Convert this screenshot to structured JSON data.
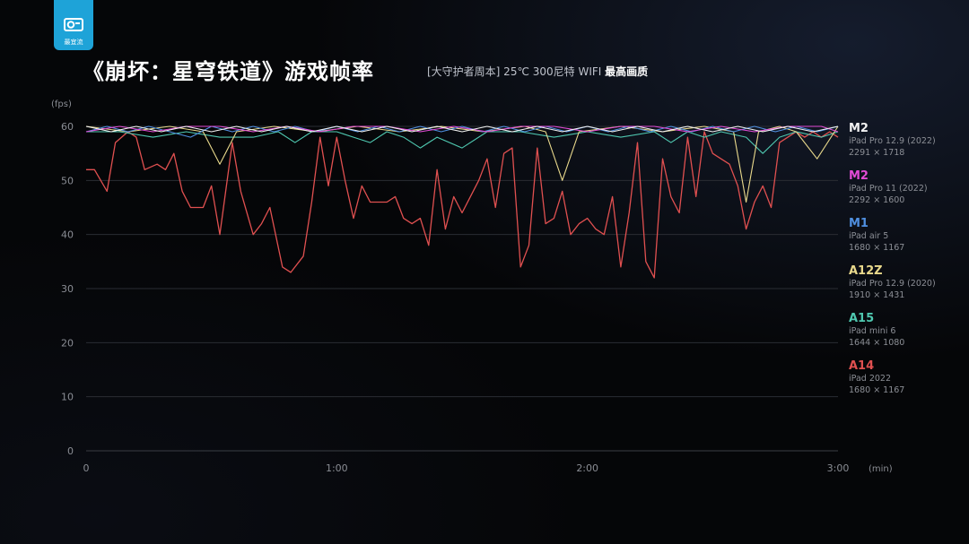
{
  "header": {
    "title": "《崩坏：星穹铁道》游戏帧率",
    "subtitle_conditions": "[大守护者周本] 25℃ 300尼特 WIFI",
    "subtitle_quality": "最高画质",
    "logo_text": "最宜流"
  },
  "colors": {
    "M2_129": "#f2f2f2",
    "M2_11": "#e24bd6",
    "M1": "#4f8fe0",
    "A12Z": "#e9d98c",
    "A15": "#4fc8b0",
    "A14": "#e05050",
    "grid": "#2a2d33",
    "axis_text": "#8a8d94"
  },
  "legend": [
    {
      "chip": "M2",
      "device": "iPad Pro 12.9 (2022)",
      "resolution": "2291 × 1718",
      "color": "#f2f2f2"
    },
    {
      "chip": "M2",
      "device": "iPad Pro 11 (2022)",
      "resolution": "2292 × 1600",
      "color": "#e24bd6"
    },
    {
      "chip": "M1",
      "device": "iPad air 5",
      "resolution": "1680 × 1167",
      "color": "#4f8fe0"
    },
    {
      "chip": "A12Z",
      "device": "iPad Pro 12.9 (2020)",
      "resolution": "1910 × 1431",
      "color": "#e9d98c"
    },
    {
      "chip": "A15",
      "device": "iPad mini 6",
      "resolution": "1644 × 1080",
      "color": "#4fc8b0"
    },
    {
      "chip": "A14",
      "device": "iPad 2022",
      "resolution": "1680 × 1167",
      "color": "#e05050"
    }
  ],
  "chart_data": {
    "type": "line",
    "title": "《崩坏：星穹铁道》游戏帧率",
    "ylabel": "(fps)",
    "xlabel": "(min)",
    "ylim": [
      0,
      60
    ],
    "xlim": [
      0,
      180
    ],
    "y_ticks": [
      0,
      10,
      20,
      30,
      40,
      50,
      60
    ],
    "y_tick_labels": [
      "0",
      "10",
      "20",
      "30",
      "40",
      "50",
      "60"
    ],
    "x_ticks": [
      0,
      60,
      120,
      180
    ],
    "x_tick_labels": [
      "0",
      "1:00",
      "2:00",
      "3:00"
    ],
    "grid": true,
    "legend_position": "right",
    "series": [
      {
        "name": "M2",
        "color": "#f2f2f2",
        "x": [
          0,
          6,
          12,
          18,
          24,
          30,
          36,
          42,
          48,
          54,
          60,
          66,
          72,
          78,
          84,
          90,
          96,
          102,
          108,
          114,
          120,
          126,
          132,
          138,
          144,
          150,
          156,
          162,
          168,
          174,
          180
        ],
        "y": [
          60,
          59,
          60,
          59,
          60,
          59,
          60,
          59,
          60,
          59,
          60,
          59,
          60,
          59,
          60,
          59,
          60,
          59,
          60,
          59,
          60,
          59,
          60,
          59,
          60,
          59,
          60,
          59,
          60,
          59,
          60
        ]
      },
      {
        "name": "M2",
        "color": "#e24bd6",
        "x": [
          0,
          8,
          16,
          24,
          32,
          40,
          48,
          56,
          64,
          72,
          80,
          88,
          96,
          104,
          112,
          120,
          128,
          136,
          144,
          152,
          160,
          168,
          176,
          180
        ],
        "y": [
          59,
          60,
          59,
          60,
          60,
          59,
          60,
          59,
          60,
          60,
          59,
          60,
          59,
          60,
          60,
          59,
          60,
          60,
          59,
          60,
          59,
          60,
          60,
          59
        ]
      },
      {
        "name": "M1",
        "color": "#4f8fe0",
        "x": [
          0,
          5,
          10,
          15,
          20,
          25,
          30,
          35,
          40,
          45,
          50,
          55,
          60,
          65,
          70,
          75,
          80,
          85,
          90,
          95,
          100,
          105,
          110,
          115,
          120,
          125,
          130,
          135,
          140,
          145,
          150,
          155,
          160,
          165,
          170,
          175,
          180
        ],
        "y": [
          59,
          60,
          59,
          60,
          59,
          58,
          60,
          59,
          60,
          59,
          60,
          59,
          60,
          59,
          60,
          59,
          60,
          59,
          60,
          59,
          60,
          59,
          60,
          59,
          60,
          59,
          60,
          59,
          60,
          59,
          60,
          59,
          60,
          59,
          60,
          59,
          60
        ]
      },
      {
        "name": "A12Z",
        "color": "#e9d98c",
        "x": [
          0,
          10,
          20,
          28,
          32,
          36,
          45,
          55,
          65,
          75,
          85,
          95,
          105,
          110,
          114,
          118,
          128,
          138,
          148,
          155,
          158,
          161,
          166,
          170,
          175,
          180
        ],
        "y": [
          60,
          59,
          60,
          59,
          53,
          59,
          60,
          59,
          60,
          59,
          60,
          59,
          60,
          59,
          50,
          59,
          60,
          59,
          60,
          59,
          46,
          59,
          60,
          59,
          54,
          60
        ]
      },
      {
        "name": "A15",
        "color": "#4fc8b0",
        "x": [
          0,
          8,
          16,
          24,
          32,
          40,
          46,
          50,
          54,
          60,
          64,
          68,
          72,
          76,
          80,
          84,
          90,
          96,
          104,
          112,
          120,
          128,
          136,
          140,
          144,
          148,
          152,
          158,
          162,
          166,
          170,
          176,
          180
        ],
        "y": [
          59,
          59,
          58,
          59,
          58,
          58,
          59,
          57,
          59,
          59,
          58,
          57,
          59,
          58,
          56,
          58,
          56,
          59,
          59,
          58,
          59,
          58,
          59,
          57,
          59,
          58,
          59,
          58,
          55,
          58,
          59,
          58,
          59
        ]
      },
      {
        "name": "A14",
        "color": "#e05050",
        "x": [
          0,
          2,
          5,
          7,
          10,
          12,
          14,
          17,
          19,
          21,
          23,
          25,
          28,
          30,
          32,
          35,
          37,
          40,
          42,
          44,
          47,
          49,
          52,
          54,
          56,
          58,
          60,
          62,
          64,
          66,
          68,
          70,
          72,
          74,
          76,
          78,
          80,
          82,
          84,
          86,
          88,
          90,
          92,
          94,
          96,
          98,
          100,
          102,
          104,
          106,
          108,
          110,
          112,
          114,
          116,
          118,
          120,
          122,
          124,
          126,
          128,
          130,
          132,
          134,
          136,
          138,
          140,
          142,
          144,
          146,
          148,
          150,
          152,
          154,
          156,
          158,
          160,
          162,
          164,
          166,
          168,
          170,
          172,
          174,
          176,
          178,
          180
        ],
        "y": [
          52,
          52,
          48,
          57,
          59,
          58,
          52,
          53,
          52,
          55,
          48,
          45,
          45,
          49,
          40,
          57,
          48,
          40,
          42,
          45,
          34,
          33,
          36,
          46,
          58,
          49,
          58,
          50,
          43,
          49,
          46,
          46,
          46,
          47,
          43,
          42,
          43,
          38,
          52,
          41,
          47,
          44,
          47,
          50,
          54,
          45,
          55,
          56,
          34,
          38,
          56,
          42,
          43,
          48,
          40,
          42,
          43,
          41,
          40,
          47,
          34,
          44,
          57,
          35,
          32,
          54,
          47,
          44,
          58,
          47,
          59,
          55,
          54,
          53,
          49,
          41,
          46,
          49,
          45,
          57,
          58,
          59,
          58,
          59,
          58,
          59,
          58
        ]
      }
    ]
  }
}
